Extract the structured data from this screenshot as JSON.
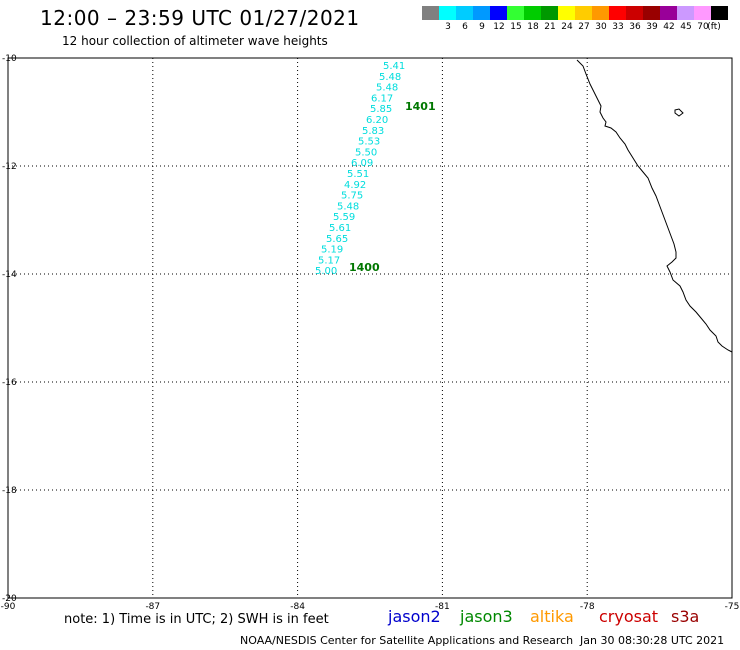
{
  "header": {
    "title": "12:00 – 23:59 UTC 01/27/2021",
    "subtitle": "12 hour collection of altimeter wave heights"
  },
  "color_scale": {
    "unit_label": "(ft)",
    "entries": [
      {
        "color": "#808080",
        "label": ""
      },
      {
        "color": "#00ffff",
        "label": "3"
      },
      {
        "color": "#00ccff",
        "label": "6"
      },
      {
        "color": "#0099ff",
        "label": "9"
      },
      {
        "color": "#0000ff",
        "label": "12"
      },
      {
        "color": "#33ff33",
        "label": "15"
      },
      {
        "color": "#00cc00",
        "label": "18"
      },
      {
        "color": "#009900",
        "label": "21"
      },
      {
        "color": "#ffff00",
        "label": "24"
      },
      {
        "color": "#ffcc00",
        "label": "27"
      },
      {
        "color": "#ff9900",
        "label": "30"
      },
      {
        "color": "#ff0000",
        "label": "33"
      },
      {
        "color": "#cc0000",
        "label": "36"
      },
      {
        "color": "#990000",
        "label": "39"
      },
      {
        "color": "#990099",
        "label": "42"
      },
      {
        "color": "#cc99ff",
        "label": "45"
      },
      {
        "color": "#ff99ff",
        "label": "70"
      },
      {
        "color": "#000000",
        "label": ""
      }
    ]
  },
  "map": {
    "lon_range": [
      -90,
      -75
    ],
    "lat_range": [
      -20,
      -10
    ],
    "y_ticks": [
      "-10",
      "-12",
      "-14",
      "-16",
      "-18",
      "-20"
    ],
    "x_ticks": [
      "-90",
      "-87",
      "-84",
      "-81",
      "-78",
      "-75"
    ],
    "track": {
      "color": "#00dddd",
      "values": [
        "5.41",
        "5.48",
        "5.48",
        "6.17",
        "5.85",
        "6.20",
        "5.83",
        "5.53",
        "5.50",
        "6.09",
        "5.51",
        "4.92",
        "5.75",
        "5.48",
        "5.59",
        "5.61",
        "5.65",
        "5.19",
        "5.17",
        "5.00"
      ]
    },
    "time_labels": [
      {
        "text": "1401",
        "color": "#007700"
      },
      {
        "text": "1400",
        "color": "#007700"
      }
    ]
  },
  "footer": {
    "note": "note:  1) Time is in UTC;  2) SWH is in feet",
    "satellites": [
      {
        "name": "jason2",
        "color": "#0000cc"
      },
      {
        "name": "jason3",
        "color": "#008800"
      },
      {
        "name": "altika",
        "color": "#ff9900"
      },
      {
        "name": "cryosat",
        "color": "#cc0000"
      },
      {
        "name": "s3a",
        "color": "#990000"
      }
    ],
    "credit": "NOAA/NESDIS Center for Satellite Applications and Research",
    "timestamp": "Jan 30 08:30:28 UTC 2021"
  }
}
